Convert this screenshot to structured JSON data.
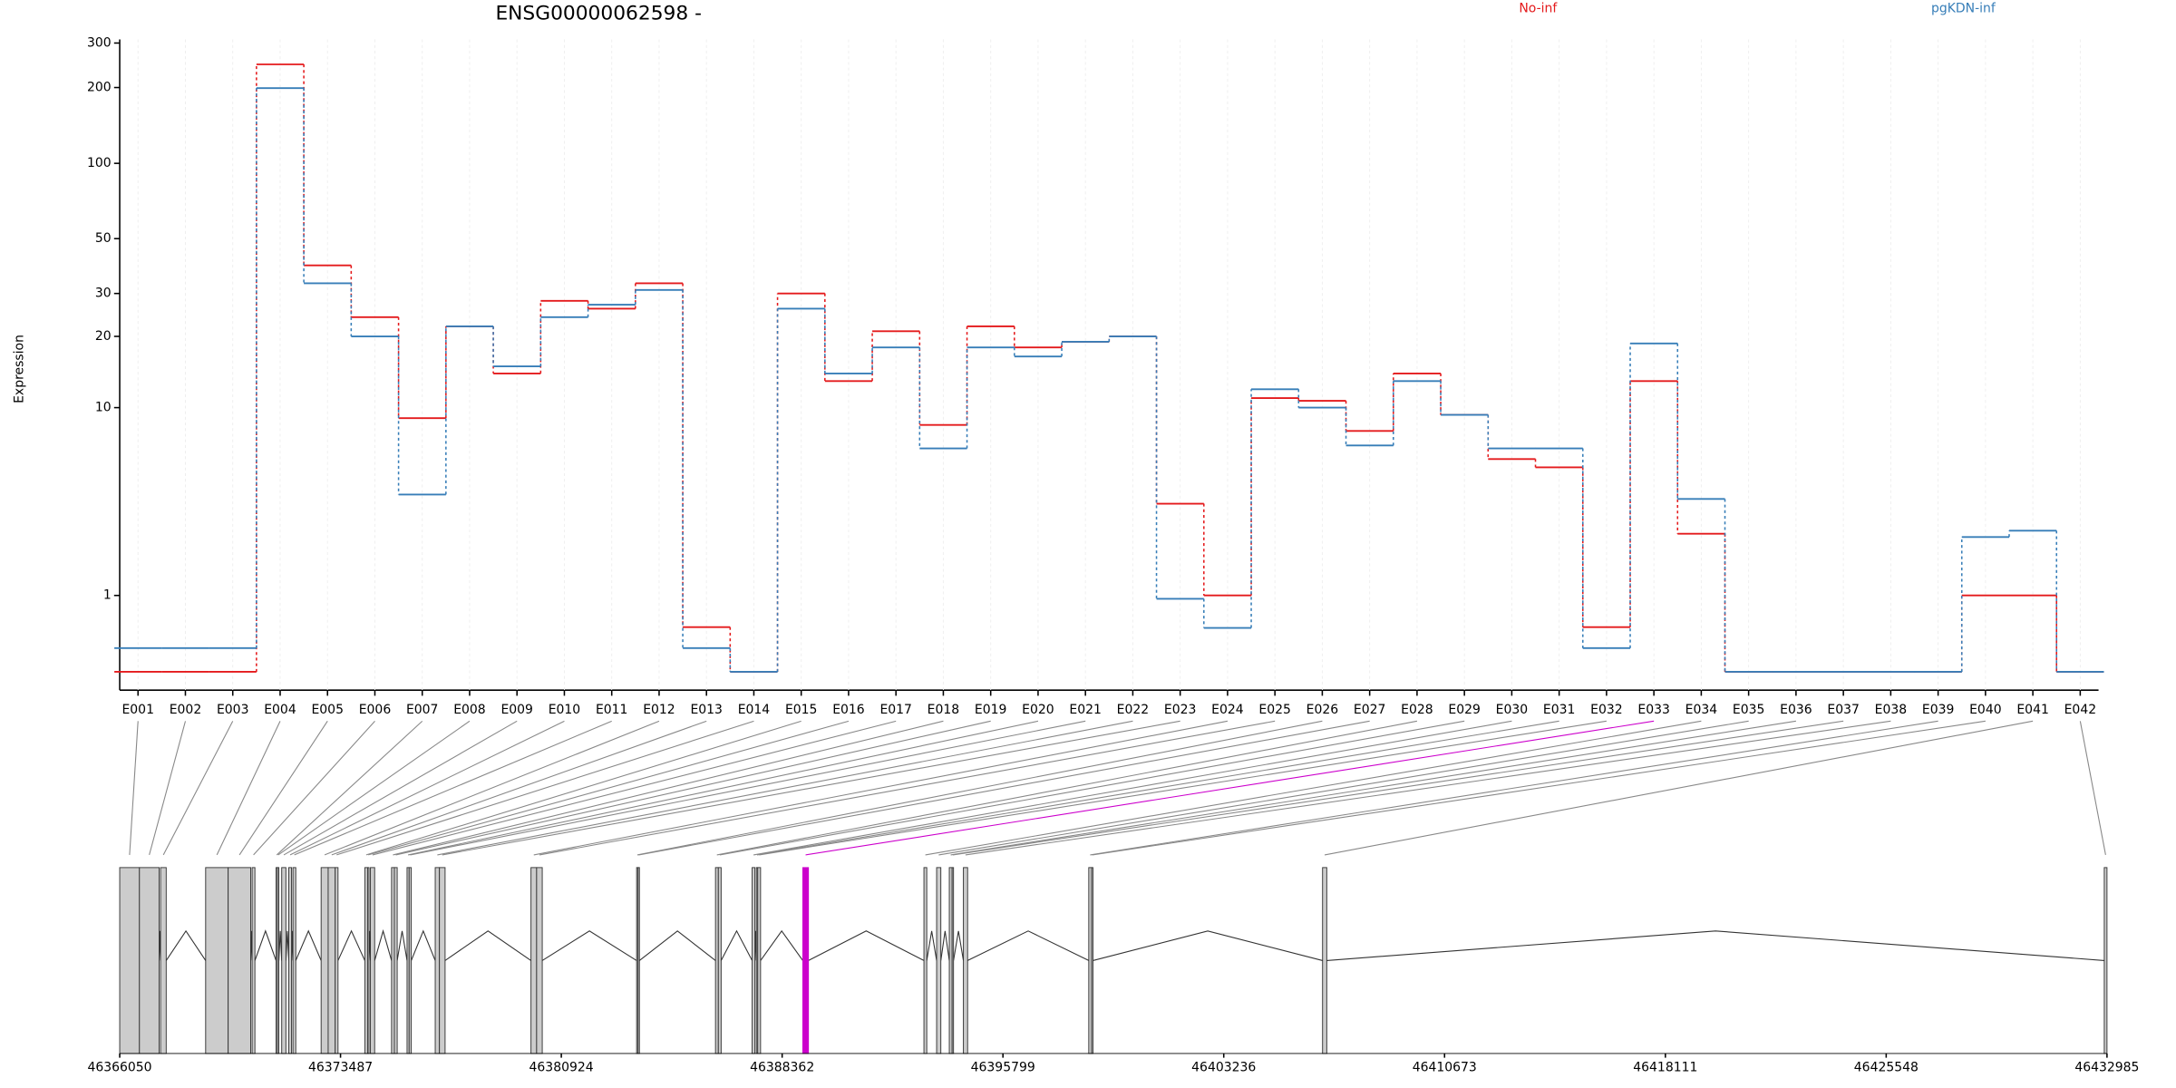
{
  "chart_data": [
    {
      "type": "step",
      "title": "ENSG00000062598 -",
      "ylabel": "Expression",
      "yscale": "log1p",
      "grid": true,
      "categories": [
        "E001",
        "E002",
        "E003",
        "E004",
        "E005",
        "E006",
        "E007",
        "E008",
        "E009",
        "E010",
        "E011",
        "E012",
        "E013",
        "E014",
        "E015",
        "E016",
        "E017",
        "E018",
        "E019",
        "E020",
        "E021",
        "E022",
        "E023",
        "E024",
        "E025",
        "E026",
        "E027",
        "E028",
        "E029",
        "E030",
        "E031",
        "E032",
        "E033",
        "E034",
        "E035",
        "E036",
        "E037",
        "E038",
        "E039",
        "E040",
        "E041",
        "E042"
      ],
      "series": [
        {
          "name": "No-inf",
          "color": "#e41a1c",
          "values": [
            0,
            0,
            0,
            247,
            39,
            24,
            9,
            22,
            14,
            28,
            26,
            33,
            0.5,
            0,
            30,
            13,
            21,
            8.4,
            22,
            18,
            19,
            20,
            3.6,
            1,
            11,
            10.7,
            7.9,
            14,
            9.3,
            5.9,
            5.4,
            0.5,
            13,
            2.5,
            0,
            0,
            0,
            0,
            0,
            1,
            1,
            0
          ]
        },
        {
          "name": "pgKDN-inf",
          "color": "#377eb8",
          "values": [
            0.24,
            0.24,
            0.24,
            199,
            33,
            20,
            4,
            22,
            15,
            24,
            27,
            31,
            0.24,
            0,
            26,
            14,
            18,
            6.6,
            18,
            16.5,
            19,
            20,
            0.94,
            0.49,
            12,
            10,
            6.8,
            13,
            9.3,
            6.6,
            6.6,
            0.24,
            18.7,
            3.8,
            0,
            0,
            0,
            0,
            0,
            2.4,
            2.6,
            0
          ]
        }
      ],
      "ylim": [
        0,
        310
      ],
      "yticks": [
        1,
        10,
        20,
        30,
        50,
        100,
        200,
        300
      ]
    },
    {
      "type": "gene_model",
      "color": "#cccccc",
      "highlighted": "E033",
      "highlight_color": "#cc00cc",
      "xlim": [
        46366050,
        46432985
      ],
      "xticks": [
        46366050,
        46373487,
        46380924,
        46388362,
        46395799,
        46403236,
        46410673,
        46418111,
        46425548,
        46432985
      ],
      "exons": [
        [
          46366050,
          46366714
        ],
        [
          46366714,
          46367378
        ],
        [
          46367426,
          46367616
        ],
        [
          46368944,
          46369703
        ],
        [
          46369703,
          46370462
        ],
        [
          46370509,
          46370604
        ],
        [
          46371316,
          46371363
        ],
        [
          46371363,
          46371411
        ],
        [
          46371506,
          46371648
        ],
        [
          46371743,
          46371838
        ],
        [
          46371885,
          46371980
        ],
        [
          46372834,
          46373071
        ],
        [
          46373071,
          46373308
        ],
        [
          46373308,
          46373403
        ],
        [
          46374305,
          46374399
        ],
        [
          46374399,
          46374447
        ],
        [
          46374494,
          46374637
        ],
        [
          46375206,
          46375301
        ],
        [
          46375301,
          46375396
        ],
        [
          46375728,
          46375799
        ],
        [
          46375799,
          46375870
        ],
        [
          46376677,
          46376819
        ],
        [
          46376819,
          46377009
        ],
        [
          46379902,
          46380092
        ],
        [
          46380092,
          46380282
        ],
        [
          46383460,
          46383508
        ],
        [
          46383508,
          46383555
        ],
        [
          46386117,
          46386212
        ],
        [
          46386212,
          46386307
        ],
        [
          46387351,
          46387445
        ],
        [
          46387493,
          46387540
        ],
        [
          46387540,
          46387635
        ],
        [
          46389058,
          46389248
        ],
        [
          46393138,
          46393233
        ],
        [
          46393565,
          46393707
        ],
        [
          46393992,
          46394087
        ],
        [
          46394087,
          46394134
        ],
        [
          46394467,
          46394609
        ],
        [
          46398689,
          46398784
        ],
        [
          46398784,
          46398831
        ],
        [
          46406564,
          46406706
        ],
        [
          46432893,
          46432985
        ]
      ]
    }
  ]
}
